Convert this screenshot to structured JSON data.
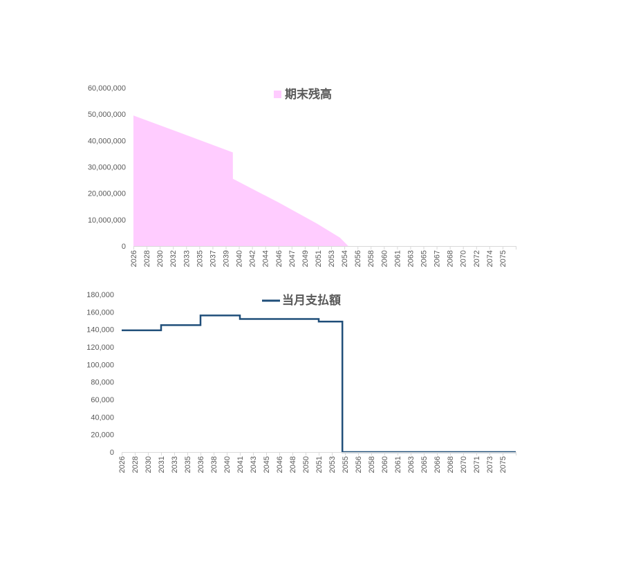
{
  "colors": {
    "area_fill": "#FFCCFF",
    "line_stroke": "#1F4E79",
    "axis": "#D9D9D9",
    "text": "#595959"
  },
  "chart_data": [
    {
      "type": "area",
      "legend": "期末残高",
      "legend_position": "top",
      "ylim": [
        0,
        60000000
      ],
      "y_ticks": [
        "0",
        "10,000,000",
        "20,000,000",
        "30,000,000",
        "40,000,000",
        "50,000,000",
        "60,000,000"
      ],
      "y_tick_values": [
        0,
        10000000,
        20000000,
        30000000,
        40000000,
        50000000,
        60000000
      ],
      "x_tick_labels": [
        "2026",
        "2028",
        "2030",
        "2032",
        "2033",
        "2035",
        "2037",
        "2039",
        "2040",
        "2042",
        "2044",
        "2046",
        "2047",
        "2049",
        "2051",
        "2053",
        "2054",
        "2056",
        "2058",
        "2060",
        "2061",
        "2063",
        "2065",
        "2067",
        "2068",
        "2070",
        "2072",
        "2074",
        "2075"
      ],
      "x_range": [
        2026,
        2076
      ],
      "series": [
        {
          "x": [
            2026.0,
            2033.0,
            2039.0,
            2039.01,
            2045.0,
            2050.0,
            2053.0,
            2054.1,
            2076.0
          ],
          "values": [
            49500000,
            42000000,
            35500000,
            25500000,
            16500000,
            8500000,
            3200000,
            0,
            0
          ]
        }
      ],
      "grid": false
    },
    {
      "type": "line",
      "legend": "当月支払額",
      "legend_position": "top",
      "ylim": [
        0,
        180000
      ],
      "y_ticks": [
        "0",
        "20,000",
        "40,000",
        "60,000",
        "80,000",
        "100,000",
        "120,000",
        "140,000",
        "160,000",
        "180,000"
      ],
      "y_tick_values": [
        0,
        20000,
        40000,
        60000,
        80000,
        100000,
        120000,
        140000,
        160000,
        180000
      ],
      "x_tick_labels": [
        "2026",
        "2028",
        "2030",
        "2031",
        "2033",
        "2035",
        "2036",
        "2038",
        "2040",
        "2041",
        "2043",
        "2045",
        "2046",
        "2048",
        "2050",
        "2051",
        "2053",
        "2055",
        "2056",
        "2058",
        "2060",
        "2061",
        "2063",
        "2065",
        "2066",
        "2068",
        "2070",
        "2071",
        "2073",
        "2075"
      ],
      "x_range": [
        2026,
        2076
      ],
      "series": [
        {
          "x": [
            2026.0,
            2031.0,
            2031.0,
            2036.0,
            2036.0,
            2041.0,
            2041.0,
            2051.0,
            2051.0,
            2054.0,
            2054.0,
            2076.0
          ],
          "values": [
            139000,
            139000,
            145000,
            145000,
            156000,
            156000,
            152000,
            152000,
            149000,
            149000,
            0,
            0
          ]
        }
      ],
      "grid": false
    }
  ]
}
